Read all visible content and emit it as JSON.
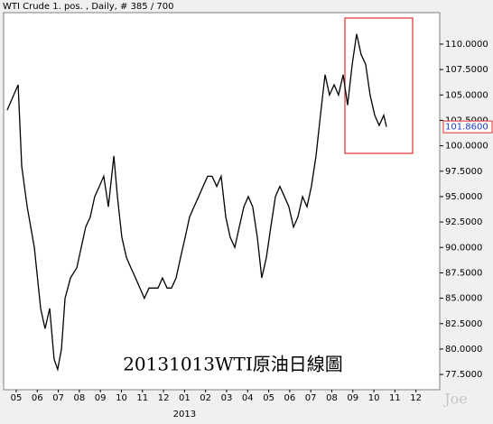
{
  "chart_data": {
    "type": "line",
    "title": "WTI Crude 1. pos. , Daily, # 385 / 700",
    "annotation": "20131013WTI原油日線圖",
    "watermark": "Joe",
    "year_label": "2013",
    "last_price": {
      "value": 101.86,
      "label": "101.8600"
    },
    "color": "#000000",
    "x": [
      -0.43,
      0.09,
      0.26,
      0.52,
      0.86,
      1.16,
      1.37,
      1.59,
      1.8,
      1.97,
      2.15,
      2.32,
      2.58,
      2.88,
      3.09,
      3.3,
      3.52,
      3.73,
      3.95,
      4.16,
      4.38,
      4.64,
      4.81,
      5.02,
      5.24,
      5.45,
      5.67,
      5.88,
      6.09,
      6.31,
      6.52,
      6.74,
      6.95,
      7.17,
      7.38,
      7.6,
      7.81,
      8.03,
      8.24,
      8.45,
      8.67,
      8.88,
      9.1,
      9.31,
      9.53,
      9.74,
      9.96,
      10.17,
      10.39,
      10.6,
      10.82,
      11.03,
      11.24,
      11.46,
      11.67,
      11.89,
      12.1,
      12.32,
      12.53,
      12.75,
      12.96,
      13.18,
      13.39,
      13.61,
      13.82,
      14.03,
      14.25,
      14.46,
      14.68,
      14.89,
      15.11,
      15.32,
      15.54,
      15.75,
      15.97,
      16.18,
      16.39,
      16.61,
      16.82,
      17.04,
      17.25,
      17.47,
      17.6
    ],
    "values": [
      103.5,
      106,
      98,
      94,
      90,
      84,
      82,
      84,
      79,
      78,
      80,
      85,
      87,
      88,
      90,
      92,
      93,
      95,
      96,
      97,
      94,
      99,
      95,
      91,
      89,
      88,
      87,
      86,
      85,
      86,
      86,
      86,
      87,
      86,
      86,
      87,
      89,
      91,
      93,
      94,
      95,
      96,
      97,
      97,
      96,
      97,
      93,
      91,
      90,
      92,
      94,
      95,
      94,
      91,
      87,
      89,
      92,
      95,
      96,
      95,
      94,
      92,
      93,
      95,
      94,
      96,
      99,
      103,
      107,
      105,
      106,
      105,
      107,
      104,
      108,
      111,
      109,
      108,
      105,
      103,
      102,
      103,
      101.86
    ],
    "xlim": [
      -0.6,
      20.13
    ],
    "ylim": [
      76.0,
      113.1
    ],
    "xticks": [
      {
        "value": 0,
        "label": "05"
      },
      {
        "value": 1,
        "label": "06"
      },
      {
        "value": 2,
        "label": "07"
      },
      {
        "value": 3,
        "label": "08"
      },
      {
        "value": 4,
        "label": "09"
      },
      {
        "value": 5,
        "label": "10"
      },
      {
        "value": 6,
        "label": "11"
      },
      {
        "value": 7,
        "label": "12"
      },
      {
        "value": 8,
        "label": "01"
      },
      {
        "value": 9,
        "label": "02"
      },
      {
        "value": 10,
        "label": "03"
      },
      {
        "value": 11,
        "label": "04"
      },
      {
        "value": 12,
        "label": "05"
      },
      {
        "value": 13,
        "label": "06"
      },
      {
        "value": 14,
        "label": "07"
      },
      {
        "value": 15,
        "label": "08"
      },
      {
        "value": 16,
        "label": "09"
      },
      {
        "value": 17,
        "label": "10"
      },
      {
        "value": 18,
        "label": "11"
      },
      {
        "value": 19,
        "label": "12"
      }
    ],
    "yticks": [
      {
        "value": 77.5,
        "label": "77.5000"
      },
      {
        "value": 80,
        "label": "80.0000"
      },
      {
        "value": 82.5,
        "label": "82.5000"
      },
      {
        "value": 85,
        "label": "85.0000"
      },
      {
        "value": 87.5,
        "label": "87.5000"
      },
      {
        "value": 90,
        "label": "90.0000"
      },
      {
        "value": 92.5,
        "label": "92.5000"
      },
      {
        "value": 95,
        "label": "95.0000"
      },
      {
        "value": 97.5,
        "label": "97.5000"
      },
      {
        "value": 100,
        "label": "100.0000"
      },
      {
        "value": 102.5,
        "label": "102.5000"
      },
      {
        "value": 105,
        "label": "105.0000"
      },
      {
        "value": 107.5,
        "label": "107.5000"
      },
      {
        "value": 110,
        "label": "110.0000"
      }
    ]
  }
}
